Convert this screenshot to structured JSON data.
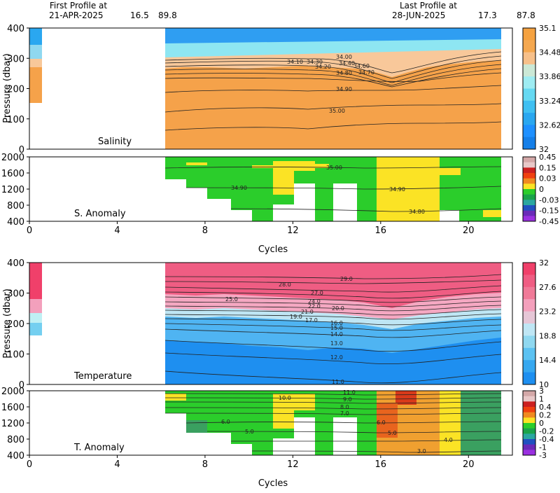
{
  "header": {
    "first_title": "First Profile at",
    "first_date": "21-APR-2025",
    "first_lat": "16.5",
    "first_lon": "89.8",
    "last_title": "Last Profile at",
    "last_date": "28-JUN-2025",
    "last_lat": "17.3",
    "last_lon": "87.8"
  },
  "colors": {
    "salinity_low": "#1e90ff",
    "salinity_high": "#f4a040",
    "temperature_low": "#2196f3",
    "temperature_high": "#f0406a",
    "anomaly_zero": "#22cc22",
    "anomaly_pos": "#ffdd11",
    "anomaly_warm": "#e8641e"
  },
  "chart_data": [
    {
      "type": "heatmap",
      "title": "Salinity",
      "xlabel": "",
      "ylabel": "Pressure (dbar)",
      "xlim": [
        0,
        22
      ],
      "ylim": [
        400,
        0
      ],
      "y_ticks": [
        0,
        100,
        200,
        300,
        400
      ],
      "x_ticks": [
        0,
        4,
        8,
        12,
        16,
        20
      ],
      "colorbar_ticks": [
        "35.1",
        "34.48",
        "33.86",
        "33.24",
        "32.62",
        "32"
      ],
      "contour_labels": [
        "34.00",
        "34.10",
        "34.20",
        "34.30",
        "34.40",
        "34.60",
        "34.70",
        "34.80",
        "34.90",
        "35.00"
      ],
      "profiles": [
        {
          "cycle": 0,
          "max_pressure": 250,
          "surface_layer_bottom": 90
        },
        {
          "cycle": 6,
          "max_pressure": 400,
          "surface_layer_bottom": 80
        },
        {
          "cycle": 10,
          "max_pressure": 400,
          "surface_layer_bottom": 75
        },
        {
          "cycle": 14,
          "max_pressure": 400,
          "surface_layer_bottom": 90
        },
        {
          "cycle": 16,
          "max_pressure": 400,
          "surface_layer_bottom": 110
        },
        {
          "cycle": 21,
          "max_pressure": 400,
          "surface_layer_bottom": 65
        }
      ]
    },
    {
      "type": "heatmap",
      "title": "S. Anomaly",
      "xlabel": "Cycles",
      "ylabel": "",
      "xlim": [
        0,
        22
      ],
      "ylim": [
        2000,
        400
      ],
      "y_ticks": [
        400,
        800,
        1200,
        1600,
        2000
      ],
      "x_ticks": [
        0,
        4,
        8,
        12,
        16,
        20
      ],
      "colorbar_ticks": [
        "0.45",
        "0.15",
        "0.03",
        "0",
        "-0.03",
        "-0.15",
        "-0.45"
      ],
      "contour_labels": [
        "35.00",
        "34.90",
        "34.90",
        "34.80"
      ]
    },
    {
      "type": "heatmap",
      "title": "Temperature",
      "xlabel": "",
      "ylabel": "Pressure (dbar)",
      "xlim": [
        0,
        22
      ],
      "ylim": [
        400,
        0
      ],
      "y_ticks": [
        0,
        100,
        200,
        300,
        400
      ],
      "x_ticks": [
        0,
        4,
        8,
        12,
        16,
        20
      ],
      "colorbar_ticks": [
        "32",
        "27.6",
        "23.2",
        "18.8",
        "14.4",
        "10"
      ],
      "contour_labels": [
        "29.0",
        "28.0",
        "27.0",
        "25.0",
        "24.0",
        "23.0",
        "22.0",
        "21.0",
        "20.0",
        "19.0",
        "18.0",
        "17.0",
        "16.0",
        "15.0",
        "14.0",
        "13.0",
        "12.0",
        "11.0"
      ]
    },
    {
      "type": "heatmap",
      "title": "T. Anomaly",
      "xlabel": "Cycles",
      "ylabel": "",
      "xlim": [
        0,
        22
      ],
      "ylim": [
        2000,
        400
      ],
      "y_ticks": [
        400,
        800,
        1200,
        1600,
        2000
      ],
      "x_ticks": [
        0,
        4,
        8,
        12,
        16,
        20
      ],
      "colorbar_ticks": [
        "3",
        "1",
        "0.4",
        "0.2",
        "0",
        "-0.2",
        "-0.4",
        "-1",
        "-3"
      ],
      "contour_labels": [
        "11.0",
        "10.0",
        "9.0",
        "8.0",
        "7.0",
        "6.0",
        "6.0",
        "5.0",
        "5.0",
        "4.0",
        "3.0"
      ]
    }
  ]
}
